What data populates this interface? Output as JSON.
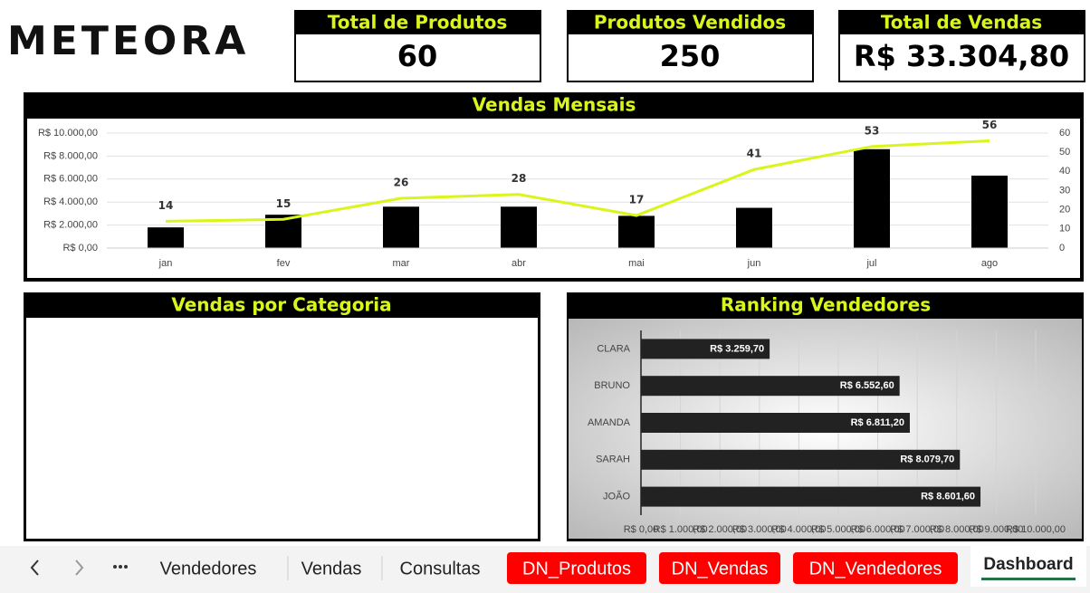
{
  "header": {
    "logo": "METEORA"
  },
  "kpis": [
    {
      "title": "Total de Produtos",
      "value": "60"
    },
    {
      "title": "Produtos Vendidos",
      "value": "250"
    },
    {
      "title": "Total de Vendas",
      "value": "R$ 33.304,80"
    }
  ],
  "chart_data": [
    {
      "type": "bar",
      "title": "Vendas Mensais",
      "categories": [
        "jan",
        "fev",
        "mar",
        "abr",
        "mai",
        "jun",
        "jul",
        "ago"
      ],
      "series": [
        {
          "color": "#000000",
          "values": [
            1800,
            2900,
            3600,
            3600,
            2800,
            3500,
            8600,
            6300
          ]
        },
        {
          "type": "line",
          "axis": "y2",
          "color": "#d9f51c",
          "values": [
            14,
            15,
            26,
            28,
            17,
            41,
            53,
            56
          ],
          "data_labels": true
        }
      ],
      "ylim": [
        0,
        10000
      ],
      "yticks": [
        {
          "value": 0,
          "label": "R$ 0,00"
        },
        {
          "value": 2000,
          "label": "R$ 2.000,00"
        },
        {
          "value": 4000,
          "label": "R$ 4.000,00"
        },
        {
          "value": 6000,
          "label": "R$ 6.000,00"
        },
        {
          "value": 8000,
          "label": "R$ 8.000,00"
        },
        {
          "value": 10000,
          "label": "R$ 10.000,00"
        }
      ],
      "y2lim": [
        0,
        60
      ],
      "y2ticks": [
        0,
        10,
        20,
        30,
        40,
        50,
        60
      ],
      "grid": true
    },
    {
      "type": "barh",
      "title": "Ranking Vendedores",
      "categories": [
        "CLARA",
        "BRUNO",
        "AMANDA",
        "SARAH",
        "JOÃO"
      ],
      "values": [
        3259.7,
        6552.6,
        6811.2,
        8079.7,
        8601.6
      ],
      "value_labels": [
        "R$ 3.259,70",
        "R$ 6.552,60",
        "R$ 6.811,20",
        "R$ 8.079,70",
        "R$ 8.601,60"
      ],
      "color": "#222222",
      "xlim": [
        0,
        10000
      ],
      "xticks": [
        {
          "value": 0,
          "label": "R$ 0,00"
        },
        {
          "value": 1000,
          "label": "R$ 1.000,00"
        },
        {
          "value": 2000,
          "label": "R$ 2.000,00"
        },
        {
          "value": 3000,
          "label": "R$ 3.000,00"
        },
        {
          "value": 4000,
          "label": "R$ 4.000,00"
        },
        {
          "value": 5000,
          "label": "R$ 5.000,00"
        },
        {
          "value": 6000,
          "label": "R$ 6.000,00"
        },
        {
          "value": 7000,
          "label": "R$ 7.000,00"
        },
        {
          "value": 8000,
          "label": "R$ 8.000,00"
        },
        {
          "value": 9000,
          "label": "R$ 9.000,00"
        },
        {
          "value": 10000,
          "label": "R$ 10.000,00"
        }
      ],
      "grid": true
    }
  ],
  "panels": {
    "category_title": "Vendas por Categoria"
  },
  "tabs": [
    {
      "label": "Vendedores",
      "highlight": false
    },
    {
      "label": "Vendas",
      "highlight": false
    },
    {
      "label": "Consultas",
      "highlight": false
    },
    {
      "label": "DN_Produtos",
      "highlight": true
    },
    {
      "label": "DN_Vendas",
      "highlight": true
    },
    {
      "label": "DN_Vendedores",
      "highlight": true
    },
    {
      "label": "Dashboard",
      "highlight": false
    }
  ],
  "active_tab": 6
}
